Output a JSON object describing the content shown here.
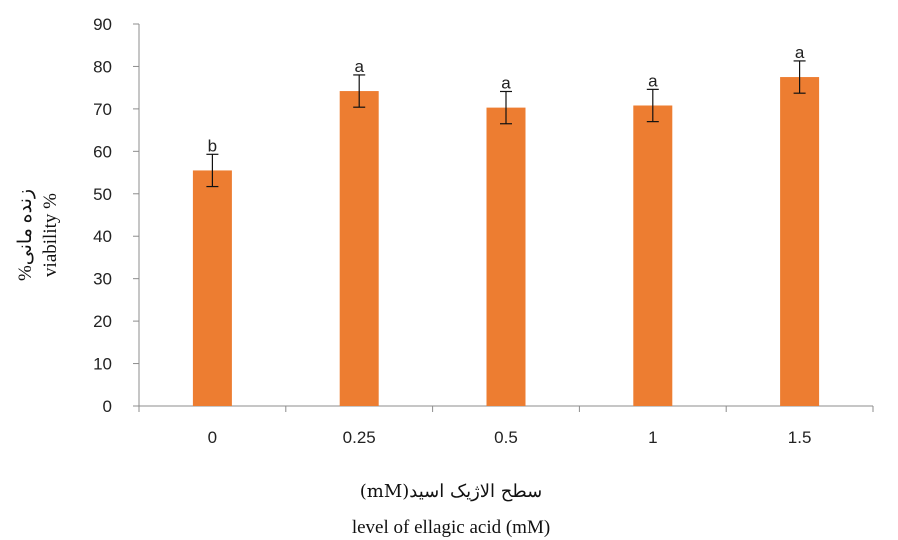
{
  "chart_data": {
    "type": "bar",
    "categories": [
      "0",
      "0.25",
      "0.5",
      "1",
      "1.5"
    ],
    "series": [
      {
        "values": [
          55.5,
          74.2,
          70.3,
          70.8,
          77.5
        ],
        "errors": [
          3.8,
          3.8,
          3.8,
          3.8,
          3.8
        ],
        "labels": [
          "b",
          "a",
          "a",
          "a",
          "a"
        ],
        "color": "#ED7D31"
      }
    ],
    "ylim": [
      0,
      90
    ],
    "yticks": [
      "0",
      "10",
      "20",
      "30",
      "40",
      "50",
      "60",
      "70",
      "80",
      "90"
    ],
    "xlabel_fa": "(mM)سطح الاژیک اسید",
    "xlabel": "level of ellagic acid (mM)",
    "ylabel_fa": "%زنده مانی",
    "ylabel": "viability %",
    "grid": false,
    "legend": "none"
  }
}
